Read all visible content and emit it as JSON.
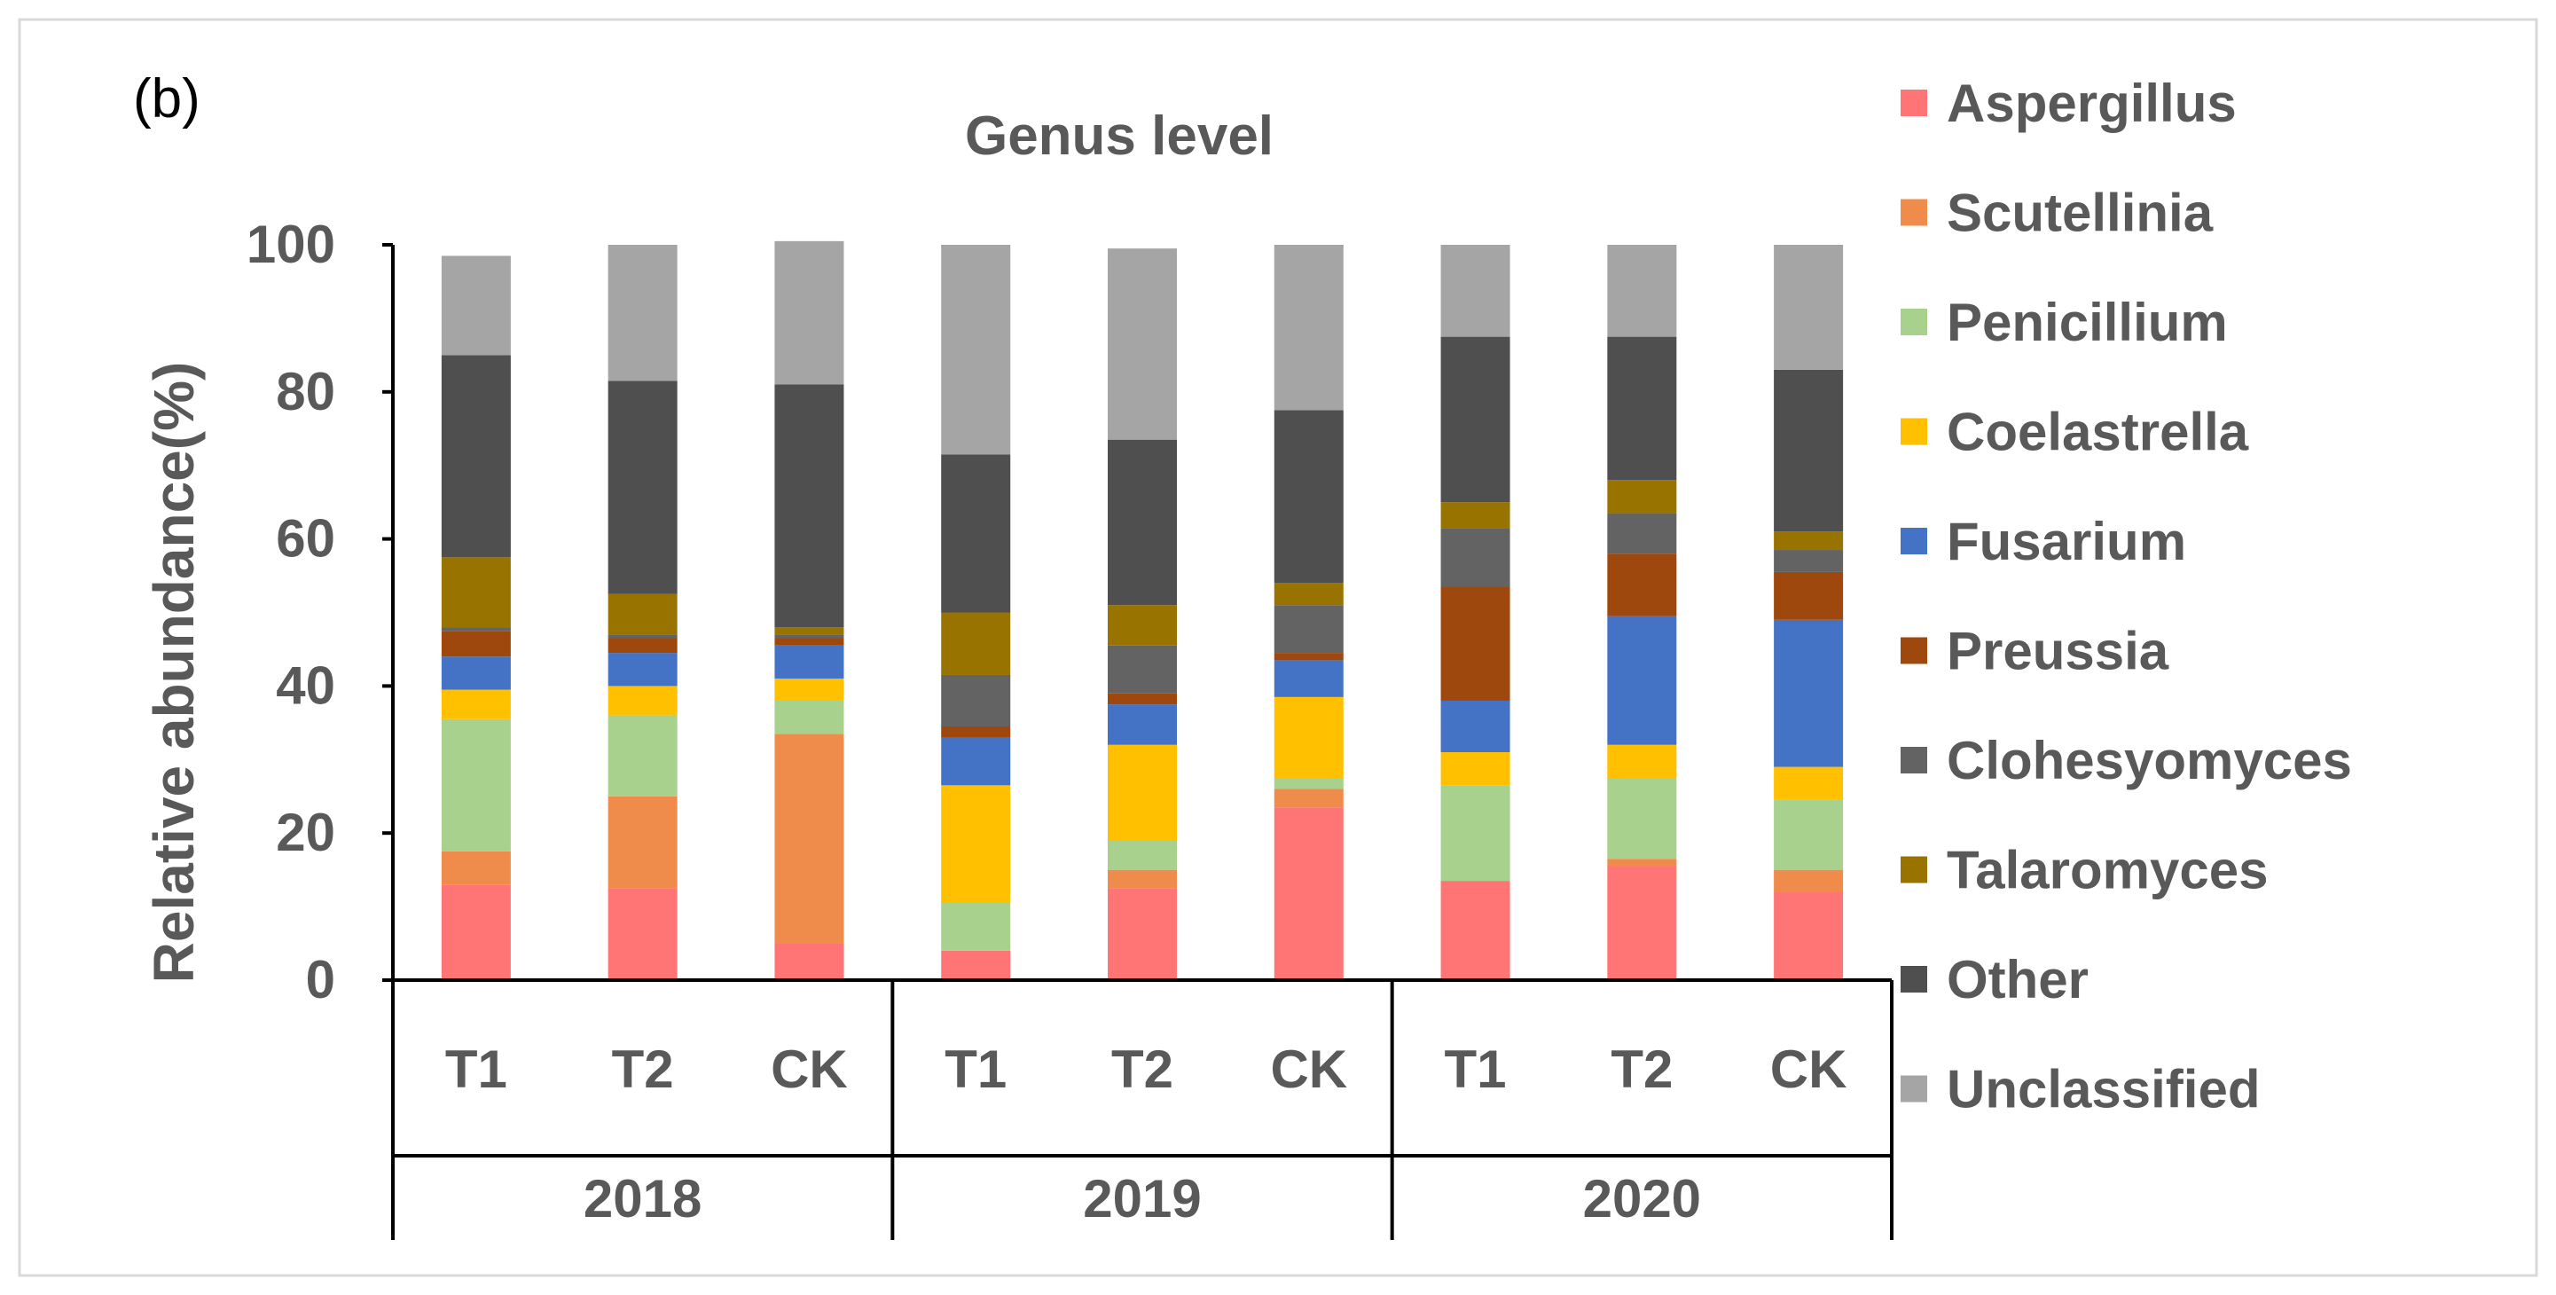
{
  "panel_label": "(b)",
  "chart_data": {
    "type": "bar",
    "stacked": true,
    "title": "Genus level",
    "xlabel": "",
    "ylabel": "Relative abundance(%)",
    "ylim": [
      0,
      100
    ],
    "yticks": [
      "0",
      "20",
      "40",
      "60",
      "80",
      "100"
    ],
    "grid": false,
    "legend_position": "right",
    "groups": [
      {
        "label": "2018",
        "categories": [
          "T1",
          "T2",
          "CK"
        ]
      },
      {
        "label": "2019",
        "categories": [
          "T1",
          "T2",
          "CK"
        ]
      },
      {
        "label": "2020",
        "categories": [
          "T1",
          "T2",
          "CK"
        ]
      }
    ],
    "categories": [
      "T1",
      "T2",
      "CK",
      "T1",
      "T2",
      "CK",
      "T1",
      "T2",
      "CK"
    ],
    "series": [
      {
        "name": "Aspergillus",
        "color": "#FF7575",
        "values": [
          13,
          12.5,
          5,
          4,
          12.5,
          23.5,
          13.5,
          15.5,
          12
        ]
      },
      {
        "name": "Scutellinia",
        "color": "#F08C4B",
        "values": [
          4.5,
          12.5,
          28.5,
          0,
          2.5,
          2.5,
          0,
          1,
          3
        ]
      },
      {
        "name": "Penicillium",
        "color": "#A9D18E",
        "values": [
          18,
          11,
          4.5,
          6.5,
          4,
          1.5,
          13,
          11,
          9.5
        ]
      },
      {
        "name": "Coelastrella",
        "color": "#FFC000",
        "values": [
          4,
          4,
          3,
          16,
          13,
          11,
          4.5,
          4.5,
          4.5
        ]
      },
      {
        "name": "Fusarium",
        "color": "#4472C4",
        "values": [
          4.5,
          4.5,
          4.5,
          6.5,
          5.5,
          5,
          7,
          17.5,
          20
        ]
      },
      {
        "name": "Preussia",
        "color": "#9E480E",
        "values": [
          3.5,
          2,
          1,
          1.5,
          1.5,
          1,
          15.5,
          8.5,
          6.5
        ]
      },
      {
        "name": "Clohesyomyces",
        "color": "#636363",
        "values": [
          0.5,
          0.5,
          0.5,
          7,
          6.5,
          6.5,
          8,
          5.5,
          3
        ]
      },
      {
        "name": "Talaromyces",
        "color": "#997300",
        "values": [
          9.5,
          5.5,
          1,
          8.5,
          5.5,
          3,
          3.5,
          4.5,
          2.5
        ]
      },
      {
        "name": "Other",
        "color": "#4F4F4F",
        "values": [
          27.5,
          29,
          33,
          21.5,
          22.5,
          23.5,
          22.5,
          19.5,
          22
        ]
      },
      {
        "name": "Unclassified",
        "color": "#A5A5A5",
        "values": [
          13.5,
          18.5,
          19.5,
          28.5,
          26,
          22.5,
          12.5,
          12.5,
          17
        ]
      }
    ]
  }
}
